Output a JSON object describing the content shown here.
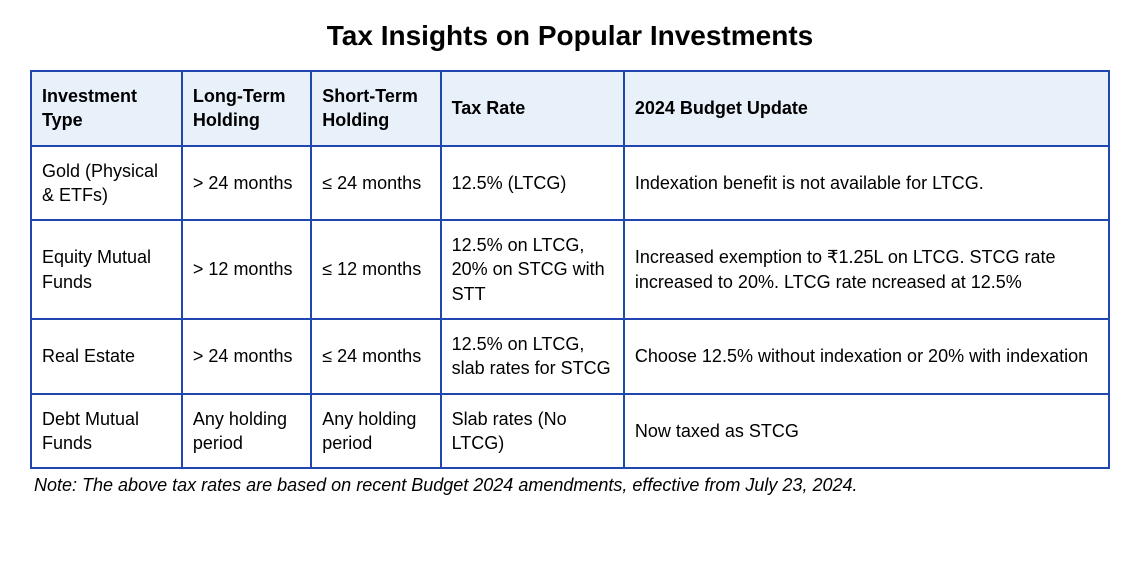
{
  "title": "Tax Insights on Popular Investments",
  "table": {
    "header_bg": "#e8f0fa",
    "border_color": "#2046b0",
    "columns": [
      {
        "label": "Investment Type",
        "width_pct": 14
      },
      {
        "label": "Long-Term Holding",
        "width_pct": 12
      },
      {
        "label": "Short-Term Holding",
        "width_pct": 12
      },
      {
        "label": "Tax Rate",
        "width_pct": 17
      },
      {
        "label": "2024 Budget Update",
        "width_pct": 45
      }
    ],
    "rows": [
      {
        "investment_type": "Gold (Physical & ETFs)",
        "long_term": "> 24 months",
        "short_term": "≤ 24 months",
        "tax_rate": "12.5% (LTCG)",
        "budget_update": "Indexation benefit is not available for LTCG."
      },
      {
        "investment_type": "Equity Mutual Funds",
        "long_term": "> 12 months",
        "short_term": "≤ 12 months",
        "tax_rate": "12.5% on LTCG, 20% on STCG with STT",
        "budget_update": "Increased exemption to ₹1.25L on LTCG. STCG rate increased to 20%. LTCG rate ncreased at 12.5%"
      },
      {
        "investment_type": "Real Estate",
        "long_term": "> 24 months",
        "short_term": "≤ 24 months",
        "tax_rate": "12.5% on LTCG, slab rates for STCG",
        "budget_update": "Choose 12.5% without indexation or 20% with indexation"
      },
      {
        "investment_type": "Debt Mutual Funds",
        "long_term": "Any holding period",
        "short_term": "Any holding period",
        "tax_rate": "Slab rates (No LTCG)",
        "budget_update": "Now taxed as STCG"
      }
    ]
  },
  "footnote": "Note: The above tax rates are based on recent Budget 2024 amendments, effective from July 23, 2024.",
  "styling": {
    "title_fontsize": 28,
    "title_color": "#000000",
    "cell_fontsize": 18,
    "cell_text_color": "#000000",
    "body_bg": "#ffffff",
    "footnote_fontsize": 18,
    "footnote_style": "italic"
  }
}
